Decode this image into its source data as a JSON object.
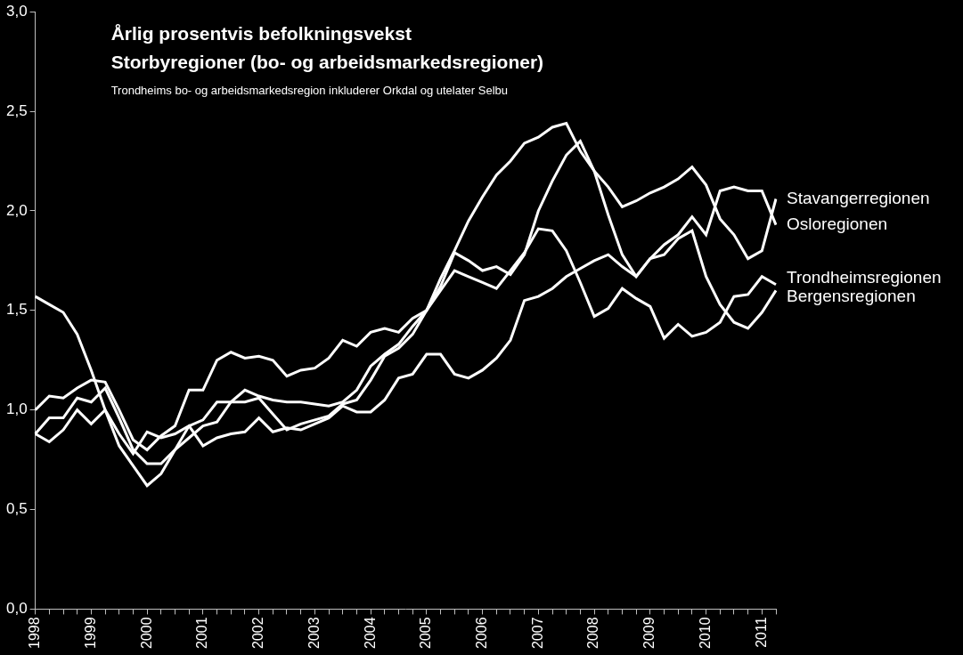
{
  "chart_data": {
    "type": "line",
    "title": "Årlig prosentvis befolkningsvekst",
    "subtitle": "Storbyregioner (bo- og arbeidsmarkedsregioner)",
    "annotations": [
      "Trondheims bo- og arbeidsmarkedsregion inkluderer Orkdal og utelater Selbu"
    ],
    "categories": [
      "1998",
      null,
      null,
      null,
      "1999",
      null,
      null,
      null,
      "2000",
      null,
      null,
      null,
      "2001",
      null,
      null,
      null,
      "2002",
      null,
      null,
      null,
      "2003",
      null,
      null,
      null,
      "2004",
      null,
      null,
      null,
      "2005",
      null,
      null,
      null,
      "2006",
      null,
      null,
      null,
      "2007",
      null,
      null,
      null,
      "2008",
      null,
      null,
      null,
      "2009",
      null,
      null,
      null,
      "2010",
      null,
      null,
      null,
      "2011",
      null
    ],
    "series": [
      {
        "name": "Stavangerregionen",
        "color": "#ffffff",
        "values": [
          1.57,
          1.53,
          1.49,
          1.38,
          1.2,
          1.0,
          0.82,
          0.72,
          0.62,
          0.68,
          0.8,
          0.86,
          0.92,
          0.94,
          1.04,
          1.04,
          1.06,
          0.98,
          0.9,
          0.93,
          0.95,
          0.97,
          1.03,
          1.05,
          1.15,
          1.27,
          1.31,
          1.38,
          1.5,
          1.66,
          1.8,
          1.95,
          2.07,
          2.18,
          2.25,
          2.34,
          2.37,
          2.42,
          2.44,
          2.3,
          2.2,
          2.12,
          2.02,
          2.05,
          2.09,
          2.12,
          2.16,
          2.22,
          2.13,
          1.96,
          1.88,
          1.76,
          1.8,
          2.06
        ]
      },
      {
        "name": "Osloregionen",
        "color": "#ffffff",
        "values": [
          1.0,
          1.07,
          1.06,
          1.11,
          1.15,
          1.14,
          1.0,
          0.85,
          0.8,
          0.87,
          0.92,
          1.1,
          1.1,
          1.25,
          1.29,
          1.26,
          1.27,
          1.25,
          1.17,
          1.2,
          1.21,
          1.26,
          1.35,
          1.32,
          1.39,
          1.41,
          1.39,
          1.46,
          1.5,
          1.62,
          1.79,
          1.75,
          1.7,
          1.72,
          1.68,
          1.78,
          2.0,
          2.15,
          2.28,
          2.35,
          2.2,
          1.98,
          1.78,
          1.67,
          1.76,
          1.83,
          1.88,
          1.97,
          1.88,
          2.1,
          2.12,
          2.1,
          2.1,
          1.93
        ]
      },
      {
        "name": "Trondheimsregionen",
        "color": "#ffffff",
        "values": [
          0.88,
          0.96,
          0.96,
          1.06,
          1.04,
          1.11,
          0.96,
          0.8,
          0.73,
          0.73,
          0.8,
          0.92,
          0.95,
          1.04,
          1.04,
          1.1,
          1.07,
          1.05,
          1.04,
          1.04,
          1.03,
          1.02,
          1.04,
          1.1,
          1.22,
          1.28,
          1.33,
          1.42,
          1.5,
          1.6,
          1.7,
          1.67,
          1.64,
          1.61,
          1.7,
          1.79,
          1.91,
          1.9,
          1.8,
          1.64,
          1.47,
          1.51,
          1.61,
          1.56,
          1.52,
          1.36,
          1.43,
          1.37,
          1.39,
          1.44,
          1.57,
          1.58,
          1.67,
          1.63
        ]
      },
      {
        "name": "Bergensregionen",
        "color": "#ffffff",
        "values": [
          0.88,
          0.84,
          0.9,
          1.0,
          0.93,
          1.0,
          0.88,
          0.78,
          0.89,
          0.86,
          0.88,
          0.92,
          0.82,
          0.86,
          0.88,
          0.89,
          0.96,
          0.89,
          0.91,
          0.9,
          0.93,
          0.96,
          1.02,
          0.99,
          0.99,
          1.05,
          1.16,
          1.18,
          1.28,
          1.28,
          1.18,
          1.16,
          1.2,
          1.26,
          1.35,
          1.55,
          1.57,
          1.61,
          1.67,
          1.71,
          1.75,
          1.78,
          1.72,
          1.67,
          1.76,
          1.78,
          1.86,
          1.9,
          1.67,
          1.53,
          1.44,
          1.41,
          1.49,
          1.6
        ]
      }
    ],
    "ylim": [
      0,
      3
    ],
    "yticks": [
      {
        "value": 0,
        "label": "0,0"
      },
      {
        "value": 0.5,
        "label": "0,5"
      },
      {
        "value": 1,
        "label": "1,0"
      },
      {
        "value": 1.5,
        "label": "1,5"
      },
      {
        "value": 2,
        "label": "2,0"
      },
      {
        "value": 2.5,
        "label": "2,5"
      },
      {
        "value": 3,
        "label": "3,0"
      }
    ],
    "grid": false
  }
}
